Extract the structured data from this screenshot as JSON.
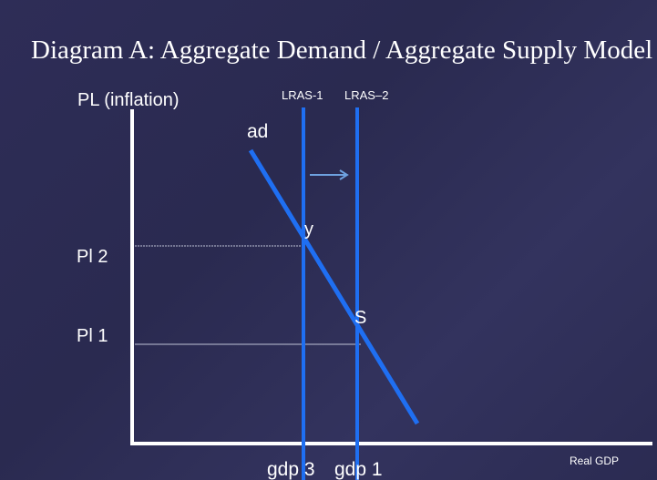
{
  "title": "Diagram A: Aggregate Demand / Aggregate Supply Model",
  "labels": {
    "y_axis": "PL (inflation)",
    "lras_1": "LRAS-1",
    "lras_2": "LRAS–2",
    "ad": "ad",
    "point_y": "y",
    "point_s": "S",
    "pl_2": "Pl 2",
    "pl_1": "Pl 1",
    "gdp_3": "gdp 3",
    "gdp_1": "gdp 1",
    "x_axis": "Real GDP"
  }
}
